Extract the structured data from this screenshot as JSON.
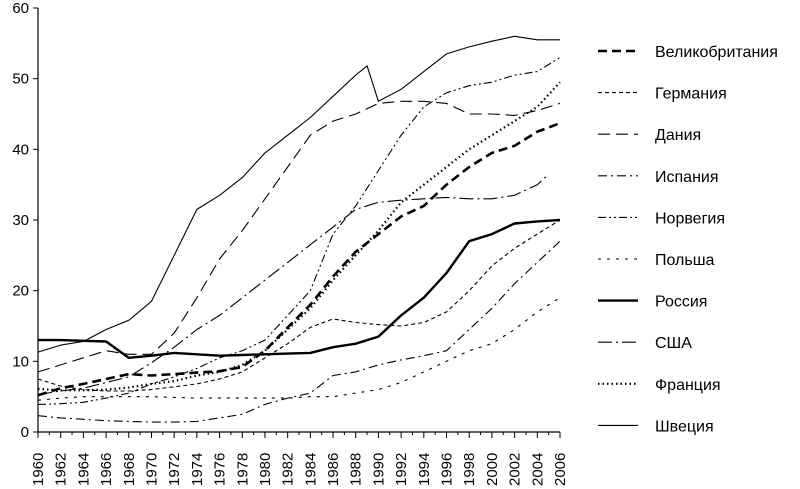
{
  "chart_data": {
    "type": "line",
    "title": "",
    "xlabel": "",
    "ylabel": "",
    "xlim": [
      1960,
      2006
    ],
    "ylim": [
      0,
      60
    ],
    "y_ticks": [
      0,
      10,
      20,
      30,
      40,
      50,
      60
    ],
    "x_ticks": [
      1960,
      1962,
      1964,
      1966,
      1968,
      1970,
      1972,
      1974,
      1976,
      1978,
      1980,
      1982,
      1984,
      1986,
      1988,
      1990,
      1992,
      1994,
      1996,
      1998,
      2000,
      2002,
      2004,
      2006
    ],
    "grid": false,
    "legend_position": "right",
    "series": [
      {
        "name": "Великобритания",
        "style": "bold-dashed",
        "color": "#000000",
        "points": [
          [
            1960,
            5.2
          ],
          [
            1962,
            6.2
          ],
          [
            1964,
            6.8
          ],
          [
            1966,
            7.5
          ],
          [
            1968,
            8.2
          ],
          [
            1970,
            8.0
          ],
          [
            1972,
            8.2
          ],
          [
            1974,
            8.4
          ],
          [
            1976,
            8.6
          ],
          [
            1978,
            9.2
          ],
          [
            1980,
            11.5
          ],
          [
            1982,
            14.8
          ],
          [
            1984,
            18.0
          ],
          [
            1986,
            22.0
          ],
          [
            1988,
            25.5
          ],
          [
            1990,
            28.0
          ],
          [
            1992,
            30.5
          ],
          [
            1994,
            32.0
          ],
          [
            1996,
            35.0
          ],
          [
            1998,
            37.5
          ],
          [
            2000,
            39.5
          ],
          [
            2002,
            40.5
          ],
          [
            2004,
            42.5
          ],
          [
            2006,
            43.7
          ]
        ]
      },
      {
        "name": "Германия",
        "style": "short-dash",
        "color": "#000000",
        "points": [
          [
            1960,
            7.5
          ],
          [
            1962,
            6.5
          ],
          [
            1964,
            6.0
          ],
          [
            1966,
            5.8
          ],
          [
            1968,
            5.8
          ],
          [
            1970,
            6.0
          ],
          [
            1972,
            6.4
          ],
          [
            1974,
            6.8
          ],
          [
            1976,
            7.5
          ],
          [
            1978,
            8.5
          ],
          [
            1980,
            10.5
          ],
          [
            1982,
            12.5
          ],
          [
            1984,
            14.8
          ],
          [
            1986,
            16.0
          ],
          [
            1988,
            15.5
          ],
          [
            1990,
            15.2
          ],
          [
            1992,
            15.0
          ],
          [
            1994,
            15.5
          ],
          [
            1996,
            17.0
          ],
          [
            1998,
            20.0
          ],
          [
            2000,
            23.5
          ],
          [
            2002,
            26.0
          ],
          [
            2004,
            28.0
          ],
          [
            2006,
            30.0
          ]
        ]
      },
      {
        "name": "Дания",
        "style": "long-dash",
        "color": "#000000",
        "points": [
          [
            1960,
            8.5
          ],
          [
            1962,
            9.5
          ],
          [
            1964,
            10.5
          ],
          [
            1966,
            11.5
          ],
          [
            1968,
            11.0
          ],
          [
            1970,
            11.0
          ],
          [
            1972,
            14.0
          ],
          [
            1974,
            19.0
          ],
          [
            1976,
            24.5
          ],
          [
            1978,
            28.5
          ],
          [
            1980,
            33.0
          ],
          [
            1982,
            37.5
          ],
          [
            1984,
            42.0
          ],
          [
            1986,
            44.0
          ],
          [
            1988,
            45.0
          ],
          [
            1990,
            46.5
          ],
          [
            1992,
            46.8
          ],
          [
            1994,
            46.8
          ],
          [
            1996,
            46.5
          ],
          [
            1998,
            45.0
          ],
          [
            2000,
            45.0
          ],
          [
            2002,
            44.8
          ],
          [
            2004,
            45.5
          ],
          [
            2006,
            46.5
          ]
        ]
      },
      {
        "name": "Испания",
        "style": "dash-dot",
        "color": "#000000",
        "points": [
          [
            1960,
            2.3
          ],
          [
            1962,
            2.0
          ],
          [
            1964,
            1.8
          ],
          [
            1966,
            1.6
          ],
          [
            1968,
            1.5
          ],
          [
            1970,
            1.4
          ],
          [
            1972,
            1.4
          ],
          [
            1974,
            1.5
          ],
          [
            1976,
            2.0
          ],
          [
            1978,
            2.5
          ],
          [
            1980,
            3.9
          ],
          [
            1982,
            4.8
          ],
          [
            1984,
            5.5
          ],
          [
            1986,
            8.0
          ],
          [
            1988,
            8.5
          ],
          [
            1990,
            9.5
          ],
          [
            1992,
            10.2
          ],
          [
            1994,
            10.8
          ],
          [
            1996,
            11.5
          ],
          [
            1998,
            14.5
          ],
          [
            2000,
            17.5
          ],
          [
            2002,
            21.0
          ],
          [
            2004,
            24.0
          ],
          [
            2006,
            27.0
          ]
        ]
      },
      {
        "name": "Норвегия",
        "style": "dash-dot-dot",
        "color": "#000000",
        "points": [
          [
            1960,
            3.9
          ],
          [
            1962,
            4.0
          ],
          [
            1964,
            4.2
          ],
          [
            1966,
            4.8
          ],
          [
            1968,
            5.5
          ],
          [
            1970,
            6.8
          ],
          [
            1972,
            7.8
          ],
          [
            1974,
            9.0
          ],
          [
            1976,
            10.5
          ],
          [
            1978,
            11.5
          ],
          [
            1980,
            13.0
          ],
          [
            1982,
            16.5
          ],
          [
            1984,
            20.0
          ],
          [
            1986,
            28.0
          ],
          [
            1988,
            32.0
          ],
          [
            1990,
            37.0
          ],
          [
            1992,
            42.0
          ],
          [
            1994,
            46.0
          ],
          [
            1996,
            48.0
          ],
          [
            1998,
            49.0
          ],
          [
            2000,
            49.5
          ],
          [
            2002,
            50.5
          ],
          [
            2004,
            51.0
          ],
          [
            2006,
            53.0
          ]
        ]
      },
      {
        "name": "Польша",
        "style": "sparse-dash",
        "color": "#000000",
        "points": [
          [
            1960,
            4.5
          ],
          [
            1962,
            4.8
          ],
          [
            1964,
            5.0
          ],
          [
            1966,
            5.0
          ],
          [
            1968,
            5.0
          ],
          [
            1970,
            5.0
          ],
          [
            1972,
            4.9
          ],
          [
            1974,
            4.8
          ],
          [
            1976,
            4.8
          ],
          [
            1978,
            4.8
          ],
          [
            1980,
            4.8
          ],
          [
            1982,
            4.8
          ],
          [
            1984,
            5.0
          ],
          [
            1986,
            5.0
          ],
          [
            1988,
            5.5
          ],
          [
            1990,
            6.0
          ],
          [
            1992,
            7.0
          ],
          [
            1994,
            8.5
          ],
          [
            1996,
            10.0
          ],
          [
            1998,
            11.5
          ],
          [
            2000,
            12.5
          ],
          [
            2002,
            14.5
          ],
          [
            2004,
            17.0
          ],
          [
            2006,
            19.0
          ]
        ]
      },
      {
        "name": "Россия",
        "style": "bold-solid",
        "color": "#000000",
        "points": [
          [
            1960,
            13.0
          ],
          [
            1962,
            13.0
          ],
          [
            1964,
            12.9
          ],
          [
            1966,
            12.8
          ],
          [
            1968,
            10.5
          ],
          [
            1970,
            10.8
          ],
          [
            1972,
            11.2
          ],
          [
            1974,
            11.0
          ],
          [
            1976,
            10.8
          ],
          [
            1978,
            10.9
          ],
          [
            1980,
            11.0
          ],
          [
            1982,
            11.1
          ],
          [
            1984,
            11.2
          ],
          [
            1986,
            12.0
          ],
          [
            1988,
            12.5
          ],
          [
            1990,
            13.5
          ],
          [
            1992,
            16.5
          ],
          [
            1994,
            19.0
          ],
          [
            1996,
            22.5
          ],
          [
            1998,
            27.0
          ],
          [
            2000,
            28.0
          ],
          [
            2002,
            29.5
          ],
          [
            2004,
            29.8
          ],
          [
            2006,
            30.0
          ]
        ]
      },
      {
        "name": "США",
        "style": "dash-dot-long",
        "color": "#000000",
        "points": [
          [
            1960,
            5.3
          ],
          [
            1962,
            5.8
          ],
          [
            1964,
            6.2
          ],
          [
            1966,
            7.0
          ],
          [
            1968,
            7.8
          ],
          [
            1970,
            9.8
          ],
          [
            1972,
            12.0
          ],
          [
            1974,
            14.5
          ],
          [
            1976,
            16.5
          ],
          [
            1978,
            19.0
          ],
          [
            1980,
            21.5
          ],
          [
            1982,
            24.0
          ],
          [
            1984,
            26.5
          ],
          [
            1986,
            29.0
          ],
          [
            1988,
            31.5
          ],
          [
            1990,
            32.5
          ],
          [
            1992,
            32.8
          ],
          [
            1994,
            33.0
          ],
          [
            1996,
            33.2
          ],
          [
            1998,
            33.0
          ],
          [
            2000,
            33.0
          ],
          [
            2002,
            33.5
          ],
          [
            2004,
            35.0
          ],
          [
            2005,
            36.5
          ]
        ]
      },
      {
        "name": "Франция",
        "style": "dotted",
        "color": "#000000",
        "points": [
          [
            1960,
            6.1
          ],
          [
            1962,
            5.9
          ],
          [
            1964,
            5.9
          ],
          [
            1966,
            6.0
          ],
          [
            1968,
            6.3
          ],
          [
            1970,
            6.8
          ],
          [
            1972,
            7.2
          ],
          [
            1974,
            8.0
          ],
          [
            1976,
            8.5
          ],
          [
            1978,
            9.5
          ],
          [
            1980,
            11.5
          ],
          [
            1982,
            14.5
          ],
          [
            1984,
            17.5
          ],
          [
            1986,
            21.5
          ],
          [
            1988,
            25.0
          ],
          [
            1990,
            28.5
          ],
          [
            1992,
            32.5
          ],
          [
            1994,
            35.0
          ],
          [
            1996,
            37.5
          ],
          [
            1998,
            40.0
          ],
          [
            2000,
            42.0
          ],
          [
            2002,
            44.0
          ],
          [
            2004,
            46.0
          ],
          [
            2006,
            49.5
          ]
        ]
      },
      {
        "name": "Швеция",
        "style": "thin-solid",
        "color": "#000000",
        "points": [
          [
            1960,
            11.3
          ],
          [
            1962,
            12.3
          ],
          [
            1964,
            12.8
          ],
          [
            1966,
            14.5
          ],
          [
            1968,
            15.8
          ],
          [
            1970,
            18.5
          ],
          [
            1972,
            25.0
          ],
          [
            1974,
            31.5
          ],
          [
            1976,
            33.5
          ],
          [
            1978,
            36.0
          ],
          [
            1980,
            39.5
          ],
          [
            1982,
            42.0
          ],
          [
            1984,
            44.5
          ],
          [
            1986,
            47.5
          ],
          [
            1988,
            50.5
          ],
          [
            1989,
            51.8
          ],
          [
            1990,
            46.8
          ],
          [
            1992,
            48.5
          ],
          [
            1994,
            51.0
          ],
          [
            1996,
            53.5
          ],
          [
            1998,
            54.5
          ],
          [
            2000,
            55.3
          ],
          [
            2002,
            56.0
          ],
          [
            2004,
            55.5
          ],
          [
            2006,
            55.5
          ]
        ]
      }
    ]
  }
}
